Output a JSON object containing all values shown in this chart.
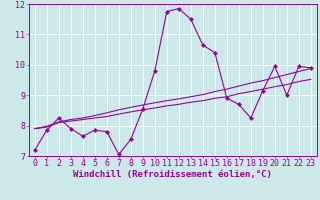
{
  "xlabel": "Windchill (Refroidissement éolien,°C)",
  "background_color": "#cce8e8",
  "line_color": "#990099",
  "grid_color": "#ffffff",
  "xlim": [
    -0.5,
    23.5
  ],
  "ylim": [
    7,
    12
  ],
  "yticks": [
    7,
    8,
    9,
    10,
    11,
    12
  ],
  "xticks": [
    0,
    1,
    2,
    3,
    4,
    5,
    6,
    7,
    8,
    9,
    10,
    11,
    12,
    13,
    14,
    15,
    16,
    17,
    18,
    19,
    20,
    21,
    22,
    23
  ],
  "line1_x": [
    0,
    1,
    2,
    3,
    4,
    5,
    6,
    7,
    8,
    9,
    10,
    11,
    12,
    13,
    14,
    15,
    16,
    17,
    18,
    19,
    20,
    21,
    22,
    23
  ],
  "line1_y": [
    7.2,
    7.85,
    8.25,
    7.9,
    7.65,
    7.85,
    7.8,
    7.05,
    7.55,
    8.55,
    9.8,
    11.75,
    11.85,
    11.5,
    10.65,
    10.4,
    8.9,
    8.7,
    8.25,
    9.15,
    9.95,
    9.0,
    9.95,
    9.9
  ],
  "line2_x": [
    0,
    1,
    2,
    3,
    4,
    5,
    6,
    7,
    8,
    9,
    10,
    11,
    12,
    13,
    14,
    15,
    16,
    17,
    18,
    19,
    20,
    21,
    22,
    23
  ],
  "line2_y": [
    7.9,
    7.95,
    8.1,
    8.15,
    8.2,
    8.25,
    8.3,
    8.38,
    8.45,
    8.52,
    8.58,
    8.65,
    8.7,
    8.77,
    8.82,
    8.9,
    8.95,
    9.05,
    9.12,
    9.2,
    9.28,
    9.35,
    9.45,
    9.52
  ],
  "line3_x": [
    0,
    1,
    2,
    3,
    4,
    5,
    6,
    7,
    8,
    9,
    10,
    11,
    12,
    13,
    14,
    15,
    16,
    17,
    18,
    19,
    20,
    21,
    22,
    23
  ],
  "line3_y": [
    7.9,
    7.98,
    8.12,
    8.2,
    8.25,
    8.33,
    8.42,
    8.52,
    8.6,
    8.68,
    8.75,
    8.82,
    8.88,
    8.95,
    9.02,
    9.12,
    9.2,
    9.3,
    9.4,
    9.48,
    9.58,
    9.68,
    9.78,
    9.88
  ],
  "xlabel_fontsize": 6.5,
  "tick_fontsize": 6.0
}
